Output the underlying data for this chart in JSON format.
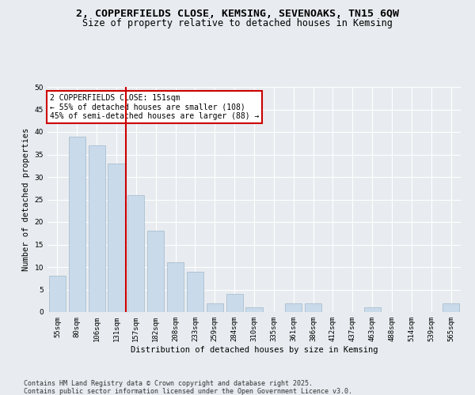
{
  "title_line1": "2, COPPERFIELDS CLOSE, KEMSING, SEVENOAKS, TN15 6QW",
  "title_line2": "Size of property relative to detached houses in Kemsing",
  "xlabel": "Distribution of detached houses by size in Kemsing",
  "ylabel": "Number of detached properties",
  "categories": [
    "55sqm",
    "80sqm",
    "106sqm",
    "131sqm",
    "157sqm",
    "182sqm",
    "208sqm",
    "233sqm",
    "259sqm",
    "284sqm",
    "310sqm",
    "335sqm",
    "361sqm",
    "386sqm",
    "412sqm",
    "437sqm",
    "463sqm",
    "488sqm",
    "514sqm",
    "539sqm",
    "565sqm"
  ],
  "values": [
    8,
    39,
    37,
    33,
    26,
    18,
    11,
    9,
    2,
    4,
    1,
    0,
    2,
    2,
    0,
    0,
    1,
    0,
    0,
    0,
    2
  ],
  "bar_color": "#c9daea",
  "bar_edge_color": "#a0b8cc",
  "vline_x_index": 3.5,
  "vline_color": "#cc0000",
  "annotation_text": "2 COPPERFIELDS CLOSE: 151sqm\n← 55% of detached houses are smaller (108)\n45% of semi-detached houses are larger (88) →",
  "annotation_box_edge": "#cc0000",
  "ylim": [
    0,
    50
  ],
  "yticks": [
    0,
    5,
    10,
    15,
    20,
    25,
    30,
    35,
    40,
    45,
    50
  ],
  "bg_color": "#e8ecf0",
  "plot_bg_color": "#e8ecf0",
  "grid_color": "#ffffff",
  "footer_line1": "Contains HM Land Registry data © Crown copyright and database right 2025.",
  "footer_line2": "Contains public sector information licensed under the Open Government Licence v3.0.",
  "title_fontsize": 9.5,
  "subtitle_fontsize": 8.5,
  "axis_label_fontsize": 7.5,
  "tick_fontsize": 6.5,
  "annotation_fontsize": 7,
  "footer_fontsize": 6
}
